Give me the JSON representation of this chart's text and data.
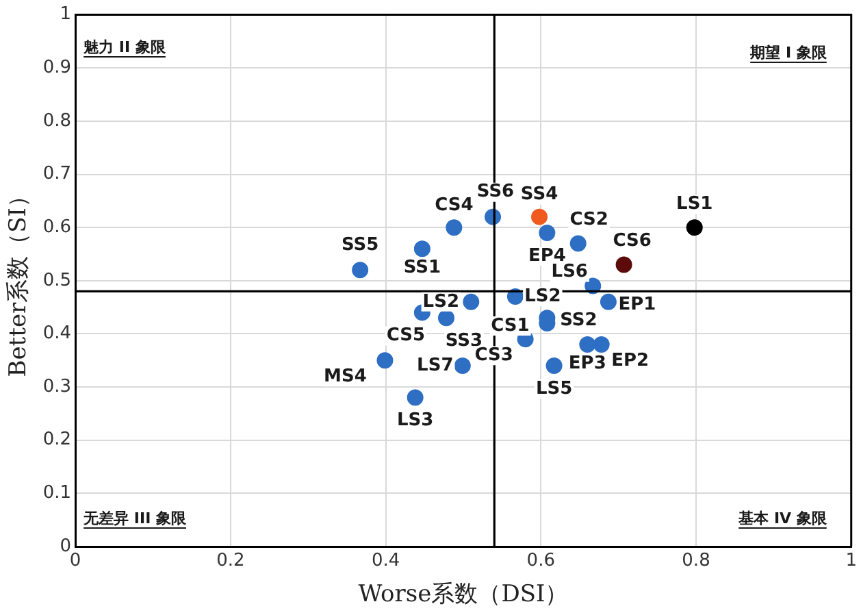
{
  "chart_data": {
    "type": "scatter",
    "xlabel": "Worse系数（DSI）",
    "ylabel": "Better系数（SI）",
    "x": [
      0.367,
      0.447,
      0.488,
      0.538,
      0.598,
      0.608,
      0.648,
      0.798,
      0.707,
      0.667,
      0.687,
      0.51,
      0.567,
      0.447,
      0.478,
      0.608,
      0.608,
      0.58,
      0.66,
      0.678,
      0.617,
      0.499,
      0.399,
      0.438
    ],
    "values": [
      0.52,
      0.56,
      0.6,
      0.62,
      0.62,
      0.59,
      0.57,
      0.6,
      0.53,
      0.49,
      0.46,
      0.46,
      0.47,
      0.44,
      0.43,
      0.43,
      0.42,
      0.39,
      0.38,
      0.38,
      0.34,
      0.34,
      0.35,
      0.28
    ],
    "colors": [
      "#2e6fc4",
      "#2e6fc4",
      "#2e6fc4",
      "#2e6fc4",
      "#f05a1e",
      "#2e6fc4",
      "#2e6fc4",
      "#000000",
      "#5c0a0a",
      "#2e6fc4",
      "#2e6fc4",
      "#2e6fc4",
      "#2e6fc4",
      "#2e6fc4",
      "#2e6fc4",
      "#2e6fc4",
      "#2e6fc4",
      "#2e6fc4",
      "#2e6fc4",
      "#2e6fc4",
      "#2e6fc4",
      "#2e6fc4",
      "#2e6fc4",
      "#2e6fc4"
    ],
    "annotations": [
      {
        "text": "SS5",
        "x": 0.367,
        "y": 0.52
      },
      {
        "text": "SS1",
        "x": 0.447,
        "y": 0.56
      },
      {
        "text": "CS4",
        "x": 0.488,
        "y": 0.6
      },
      {
        "text": "SS6",
        "x": 0.538,
        "y": 0.62
      },
      {
        "text": "SS4",
        "x": 0.598,
        "y": 0.62
      },
      {
        "text": "EP4",
        "x": 0.608,
        "y": 0.59
      },
      {
        "text": "CS2",
        "x": 0.648,
        "y": 0.57
      },
      {
        "text": "LS1",
        "x": 0.798,
        "y": 0.6
      },
      {
        "text": "CS6",
        "x": 0.707,
        "y": 0.53
      },
      {
        "text": "LS6",
        "x": 0.667,
        "y": 0.49
      },
      {
        "text": "EP1",
        "x": 0.687,
        "y": 0.46
      },
      {
        "text": "LS2",
        "x": 0.51,
        "y": 0.46
      },
      {
        "text": "LS2",
        "x": 0.567,
        "y": 0.47
      },
      {
        "text": "CS5",
        "x": 0.447,
        "y": 0.44
      },
      {
        "text": "SS3",
        "x": 0.478,
        "y": 0.43
      },
      {
        "text": "SS2",
        "x": 0.608,
        "y": 0.43
      },
      {
        "text": "CS1",
        "x": 0.608,
        "y": 0.42
      },
      {
        "text": "CS3",
        "x": 0.58,
        "y": 0.39
      },
      {
        "text": "EP3",
        "x": 0.66,
        "y": 0.38
      },
      {
        "text": "EP2",
        "x": 0.678,
        "y": 0.38
      },
      {
        "text": "LS5",
        "x": 0.617,
        "y": 0.34
      },
      {
        "text": "LS7",
        "x": 0.499,
        "y": 0.34
      },
      {
        "text": "MS4",
        "x": 0.399,
        "y": 0.35
      },
      {
        "text": "LS3",
        "x": 0.438,
        "y": 0.28
      },
      "魅力 II 象限",
      "期望 I 象限",
      "无差异 III 象限",
      "基本 IV 象限"
    ],
    "ref_lines": [
      {
        "axis": "x",
        "value": 0.54,
        "color": "#000000"
      },
      {
        "axis": "y",
        "value": 0.48,
        "color": "#000000"
      }
    ],
    "xlim": [
      0,
      1
    ],
    "ylim": [
      0,
      1
    ],
    "xticks": [
      0,
      0.2,
      0.4,
      0.6,
      0.8,
      1
    ],
    "yticks": [
      0,
      0.1,
      0.2,
      0.3,
      0.4,
      0.5,
      0.6,
      0.7,
      0.8,
      0.9,
      1
    ],
    "grid": true,
    "legend": false,
    "marker": "circle"
  }
}
